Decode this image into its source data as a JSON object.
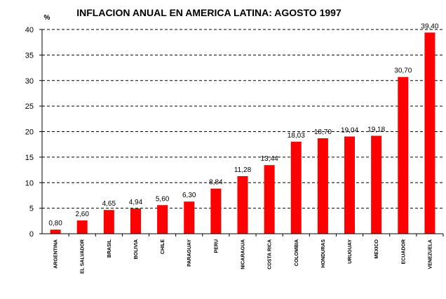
{
  "chart_data": {
    "type": "bar",
    "title": "INFLACION ANUAL EN AMERICA LATINA: AGOSTO 1997",
    "ylabel": "%",
    "xlabel": "",
    "ylim": [
      0,
      40
    ],
    "yticks": [
      0,
      5,
      10,
      15,
      20,
      25,
      30,
      35,
      40
    ],
    "grid": "horizontal-dashed",
    "bar_color": "#FF0000",
    "categories": [
      "ARGENTINA",
      "EL SALVADOR",
      "BRASIL",
      "BOLIVIA",
      "CHILE",
      "PARAGUAY",
      "PERU",
      "NICARAGUA",
      "COSTA RICA",
      "COLOMBIA",
      "HONDURAS",
      "URUGUAY",
      "MEXICO",
      "ECUADOR",
      "VENEZUELA"
    ],
    "values": [
      0.8,
      2.6,
      4.65,
      4.94,
      5.6,
      6.3,
      8.84,
      11.28,
      13.44,
      18.03,
      18.7,
      19.04,
      19.18,
      30.7,
      39.4
    ],
    "value_labels": [
      "0,80",
      "2,60",
      "4,65",
      "4,94",
      "5,60",
      "6,30",
      "8,84",
      "11,28",
      "13,44",
      "18,03",
      "18,70",
      "19,04",
      "19,18",
      "30,70",
      "39,40"
    ]
  }
}
